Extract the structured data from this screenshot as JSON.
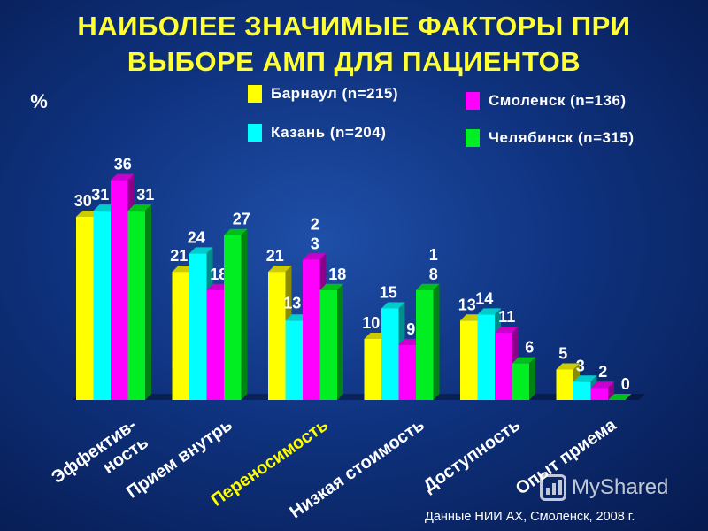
{
  "title_lines": [
    "НАИБОЛЕЕ ЗНАЧИМЫЕ ФАКТОРЫ ПРИ",
    "ВЫБОРЕ АМП ДЛЯ ПАЦИЕНТОВ"
  ],
  "source_note": "Данные НИИ АХ, Смоленск, 2008 г.",
  "watermark": "MyShared",
  "colors": {
    "text": "#ffffff",
    "title": "#ffff33",
    "highlight_category": "#ffff00"
  },
  "chart_data": {
    "type": "bar",
    "title": "НАИБОЛЕЕ ЗНАЧИМЫЕ ФАКТОРЫ ПРИ ВЫБОРЕ АМП ДЛЯ ПАЦИЕНТОВ",
    "ylabel": "%",
    "ylim": [
      0,
      40
    ],
    "grid": false,
    "legend_position": "top",
    "highlighted_category_index": 2,
    "categories": [
      [
        "Эффектив-",
        "ность"
      ],
      [
        "Прием внутрь"
      ],
      [
        "Переносимость"
      ],
      [
        "Низкая стоимость"
      ],
      [
        "Доступность"
      ],
      [
        "Опыт приема"
      ]
    ],
    "series": [
      {
        "name": "Барнаул (n=215)",
        "color": "#ffff00",
        "values": [
          30,
          21,
          21,
          10,
          13,
          5
        ],
        "labels": [
          [
            "30"
          ],
          [
            "21"
          ],
          [
            "21"
          ],
          [
            "10"
          ],
          [
            "13"
          ],
          [
            "5"
          ]
        ]
      },
      {
        "name": "Казань (n=204)",
        "color": "#00ffff",
        "values": [
          31,
          24,
          13,
          15,
          14,
          3
        ],
        "labels": [
          [
            "31"
          ],
          [
            "24"
          ],
          [
            "13"
          ],
          [
            "15"
          ],
          [
            "14"
          ],
          [
            "3"
          ]
        ]
      },
      {
        "name": "Смоленск (n=136)",
        "color": "#ff00ff",
        "values": [
          36,
          18,
          23,
          9,
          11,
          2
        ],
        "labels": [
          [
            "36"
          ],
          [
            "18"
          ],
          [
            "2",
            "3"
          ],
          [
            "9"
          ],
          [
            "11"
          ],
          [
            "2"
          ]
        ]
      },
      {
        "name": "Челябинск (n=315)",
        "color": "#00ee22",
        "values": [
          31,
          27,
          18,
          18,
          6,
          0
        ],
        "labels": [
          [
            "31"
          ],
          [
            "27"
          ],
          [
            "18"
          ],
          [
            "1",
            "8"
          ],
          [
            "6"
          ],
          [
            "0"
          ]
        ]
      }
    ]
  }
}
